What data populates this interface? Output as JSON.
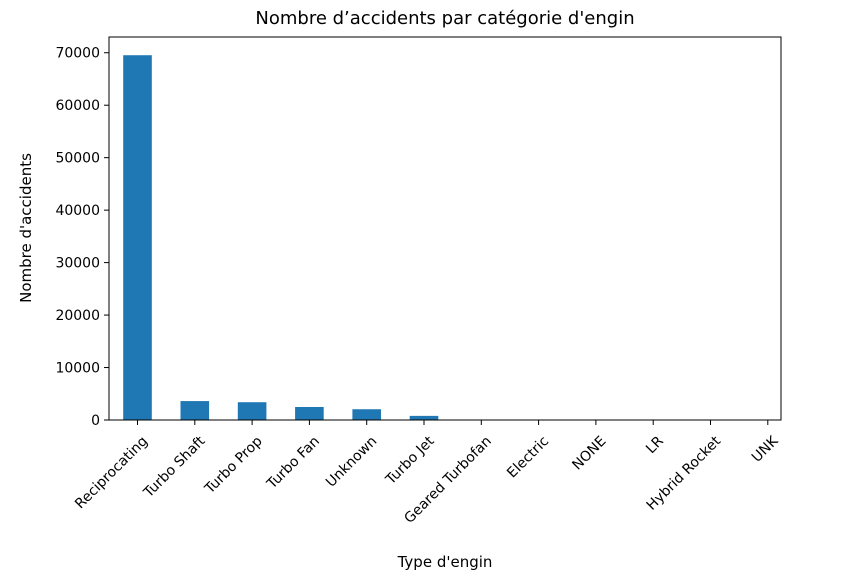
{
  "chart_data": {
    "type": "bar",
    "title": "Nombre d’accidents par catégorie d'engin",
    "xlabel": "Type d'engin",
    "ylabel": "Nombre d'accidents",
    "categories": [
      "Reciprocating",
      "Turbo Shaft",
      "Turbo Prop",
      "Turbo Fan",
      "Unknown",
      "Turbo Jet",
      "Geared Turbofan",
      "Electric",
      "NONE",
      "LR",
      "Hybrid Rocket",
      "UNK"
    ],
    "values": [
      69530,
      3609,
      3391,
      2481,
      2050,
      785,
      12,
      10,
      2,
      2,
      1,
      1
    ],
    "ylim": [
      0,
      73000
    ],
    "yticks": [
      0,
      10000,
      20000,
      30000,
      40000,
      50000,
      60000,
      70000
    ],
    "bar_color": "#1f77b4",
    "grid": false,
    "legend": "none"
  }
}
